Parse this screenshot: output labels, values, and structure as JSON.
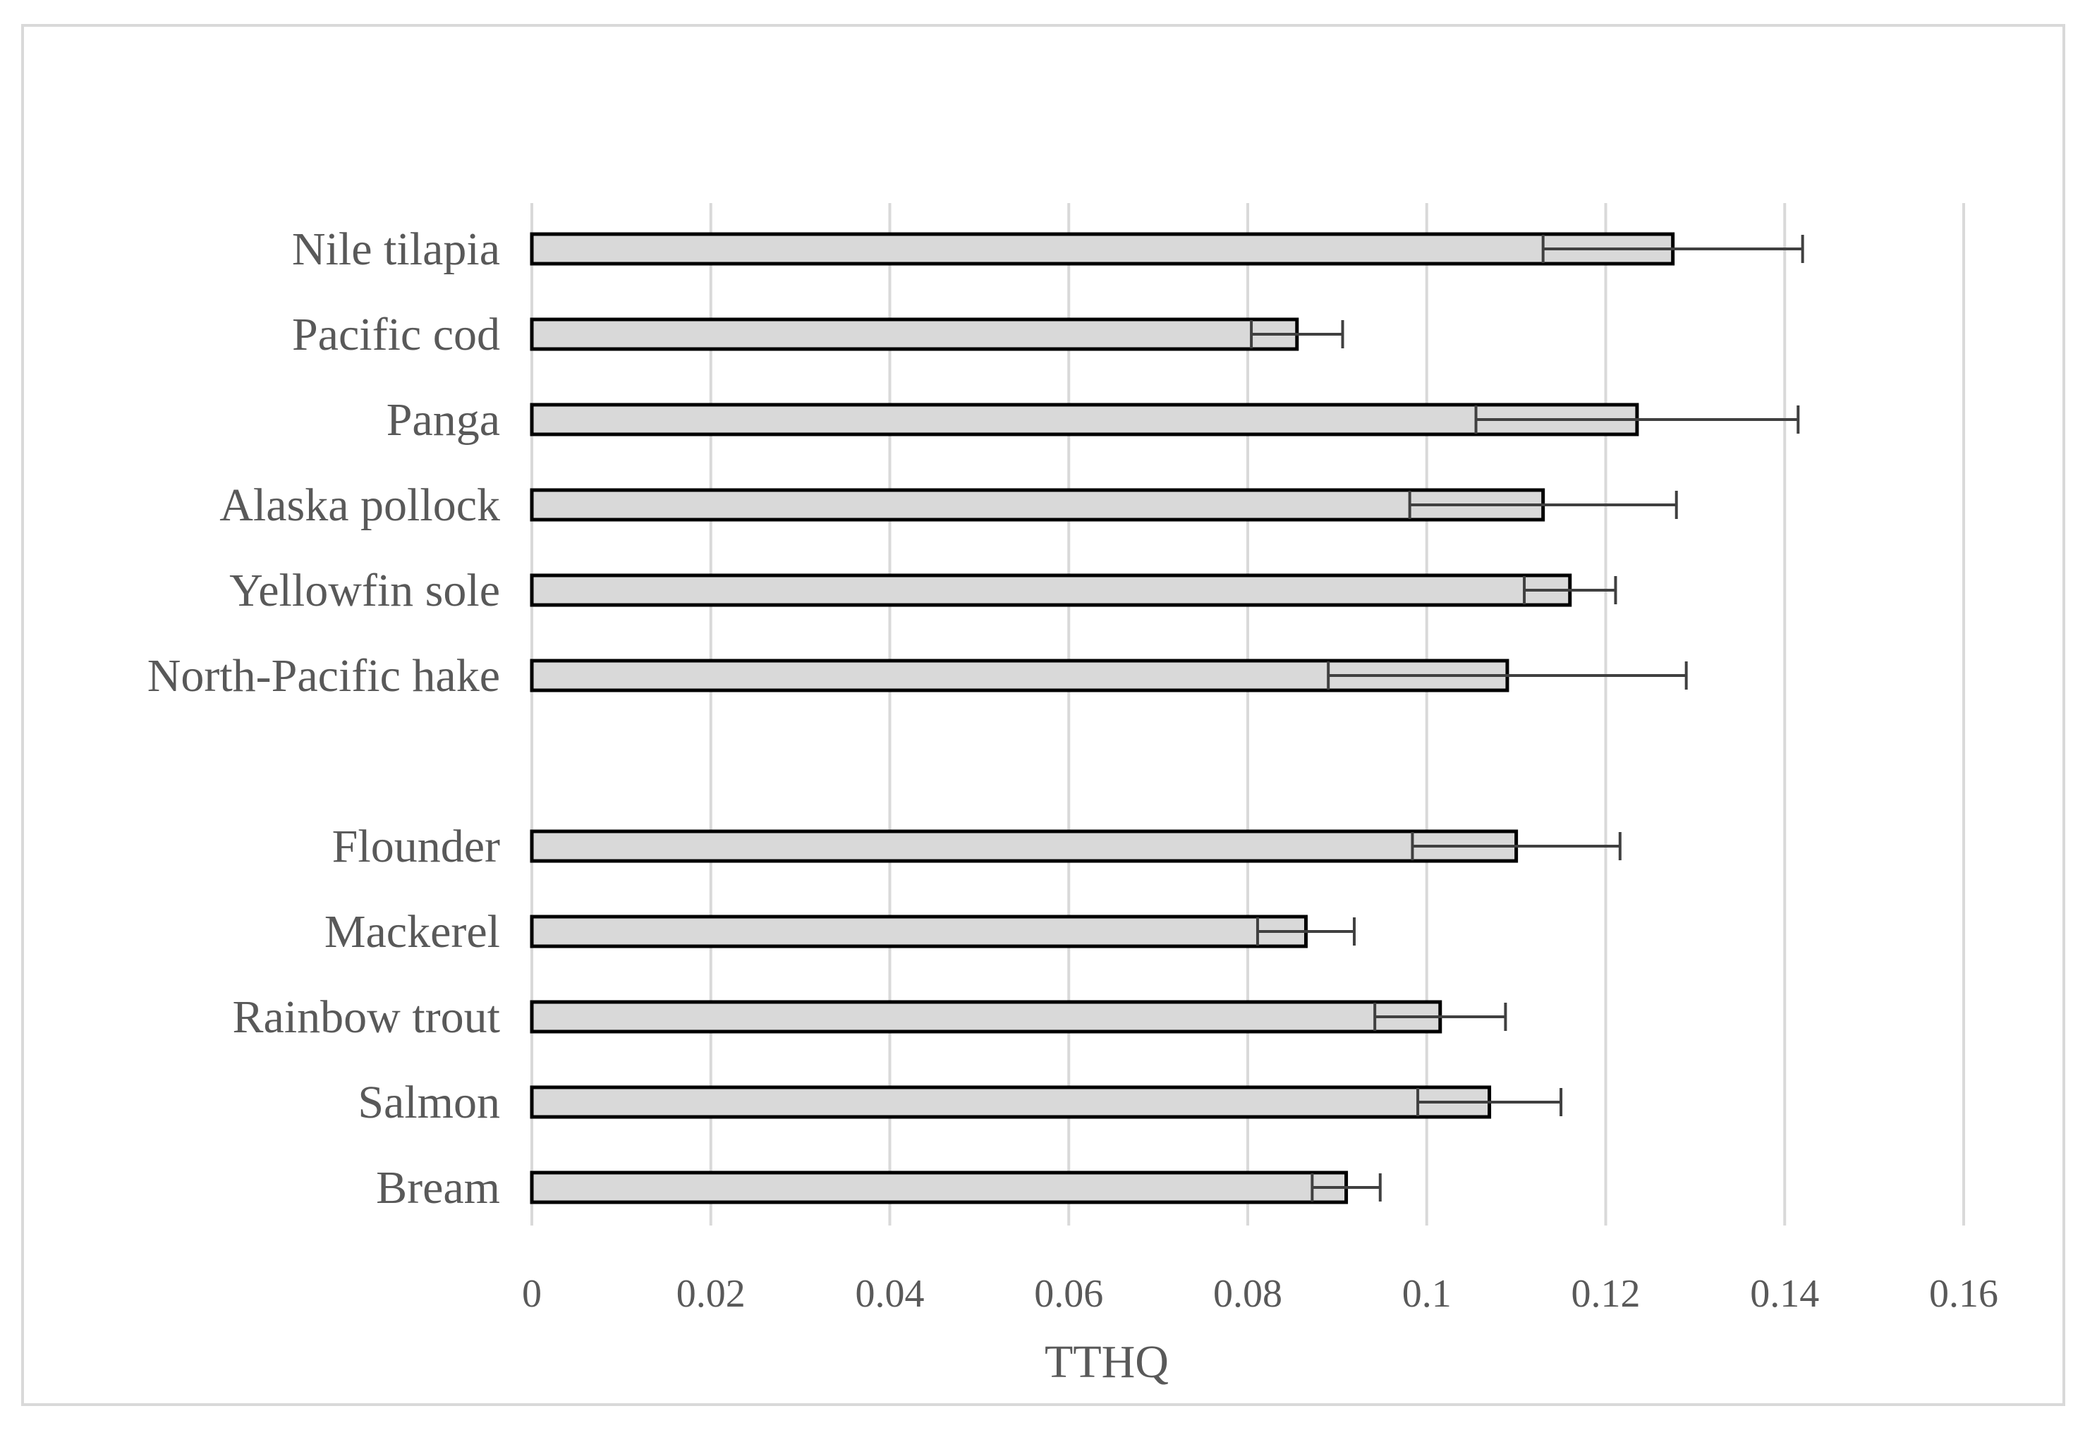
{
  "chart_data": {
    "type": "bar",
    "orientation": "horizontal",
    "xlabel": "TTHQ",
    "ylabel": "",
    "title": "",
    "xlim": [
      0,
      0.16
    ],
    "xticks": [
      0,
      0.02,
      0.04,
      0.06,
      0.08,
      0.1,
      0.12,
      0.14,
      0.16
    ],
    "xtick_labels": [
      "0",
      "0.02",
      "0.04",
      "0.06",
      "0.08",
      "0.1",
      "0.12",
      "0.14",
      "0.16"
    ],
    "grid": "vertical gridlines",
    "bar_fill": "#d9d9d9",
    "bar_edge": "#000000",
    "error_bar_color": "#404040",
    "categories": [
      "Nile tilapia",
      "Pacific cod",
      "Panga",
      "Alaska pollock",
      "Yellowfin sole",
      "North-Pacific hake",
      "Flounder",
      "Mackerel",
      "Rainbow trout",
      "Salmon",
      "Bream"
    ],
    "groups": [
      [
        "Nile tilapia",
        "Pacific cod",
        "Panga",
        "Alaska pollock",
        "Yellowfin sole",
        "North-Pacific hake"
      ],
      [
        "Flounder",
        "Mackerel",
        "Rainbow trout",
        "Salmon",
        "Bream"
      ]
    ],
    "values": [
      0.1275,
      0.0855,
      0.1235,
      0.113,
      0.116,
      0.109,
      0.11,
      0.0865,
      0.1015,
      0.107,
      0.091
    ],
    "errors": [
      0.0145,
      0.0051,
      0.018,
      0.0149,
      0.0051,
      0.02,
      0.0116,
      0.0054,
      0.0073,
      0.008,
      0.0038
    ]
  }
}
